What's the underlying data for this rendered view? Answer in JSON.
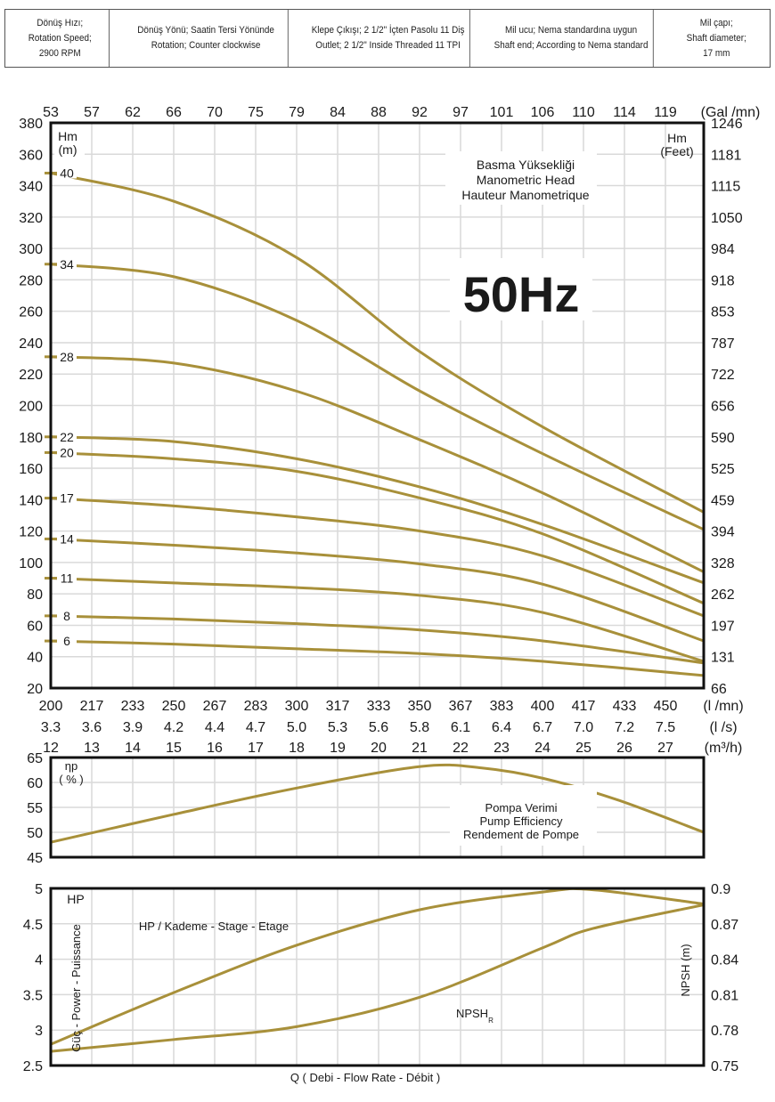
{
  "specs": [
    "Dönüş Hızı;\nRotation Speed;\n2900 RPM",
    "Dönüş Yönü; Saatin Tersi Yönünde\nRotation; Counter clockwise",
    "Klepe Çıkışı; 2 1/2\" İçten Pasolu 11 Diş\nOutlet; 2 1/2\" Inside Threaded 11 TPI",
    "Mil ucu; Nema standardına uygun\nShaft end; According to Nema standard",
    "Mil çapı;\nShaft diameter;\n17 mm"
  ],
  "colors": {
    "curve": "#a8903a",
    "grid": "#d9d9d9",
    "frame": "#111111"
  },
  "chart_data": [
    {
      "type": "line",
      "title": "50Hz",
      "annotation": [
        "Basma Yüksekliği",
        "Manometric Head",
        "Hauteur Manometrique"
      ],
      "ylabel_left": [
        "Hm",
        "(m)"
      ],
      "ylabel_right": [
        "Hm",
        "(Feet)"
      ],
      "x_unit": "l/mn",
      "xlim": [
        200,
        465
      ],
      "ylim": [
        20,
        380
      ],
      "grid": true,
      "y_ticks": [
        20,
        40,
        60,
        80,
        100,
        120,
        140,
        160,
        180,
        200,
        220,
        240,
        260,
        280,
        300,
        320,
        340,
        360,
        380
      ],
      "y_right_ticks": [
        "66",
        "131",
        "197",
        "262",
        "328",
        "394",
        "459",
        "525",
        "590",
        "656",
        "722",
        "787",
        "853",
        "918",
        "984",
        "1050",
        "1115",
        "1181",
        "1246"
      ],
      "x_top_ticks": {
        "labels": [
          "53",
          "57",
          "62",
          "66",
          "70",
          "75",
          "79",
          "84",
          "88",
          "92",
          "97",
          "101",
          "106",
          "110",
          "114",
          "119"
        ],
        "unit": "(Gal /mn)"
      },
      "x_ticks_lmn": {
        "labels": [
          "200",
          "217",
          "233",
          "250",
          "267",
          "283",
          "300",
          "317",
          "333",
          "350",
          "367",
          "383",
          "400",
          "417",
          "433",
          "450"
        ],
        "unit": "(l /mn)"
      },
      "x_ticks_ls": {
        "labels": [
          "3.3",
          "3.6",
          "3.9",
          "4.2",
          "4.4",
          "4.7",
          "5.0",
          "5.3",
          "5.6",
          "5.8",
          "6.1",
          "6.4",
          "6.7",
          "7.0",
          "7.2",
          "7.5"
        ],
        "unit": "(l /s)"
      },
      "x_ticks_m3h": {
        "labels": [
          "12",
          "13",
          "14",
          "15",
          "16",
          "17",
          "18",
          "19",
          "20",
          "21",
          "22",
          "23",
          "24",
          "25",
          "26",
          "27"
        ],
        "unit": "(m³/h)"
      },
      "x": [
        200,
        250,
        300,
        350,
        400,
        465
      ],
      "series": [
        {
          "name": "40",
          "values": [
            348,
            330,
            294,
            234,
            186,
            132
          ]
        },
        {
          "name": "34",
          "values": [
            290,
            282,
            254,
            209,
            169,
            121
          ]
        },
        {
          "name": "28",
          "values": [
            231,
            227,
            209,
            178,
            144,
            94
          ]
        },
        {
          "name": "22",
          "values": [
            180,
            177,
            166,
            148,
            124,
            87
          ]
        },
        {
          "name": "20",
          "values": [
            170,
            166,
            158,
            141,
            118,
            74
          ]
        },
        {
          "name": "17",
          "values": [
            141,
            136,
            129,
            120,
            104,
            66
          ]
        },
        {
          "name": "14",
          "values": [
            115,
            111,
            106,
            99,
            86,
            50
          ]
        },
        {
          "name": "11",
          "values": [
            90,
            87,
            84,
            79,
            68,
            37
          ]
        },
        {
          "name": "8",
          "values": [
            66,
            64,
            61,
            57,
            50,
            36
          ]
        },
        {
          "name": "6",
          "values": [
            50,
            48,
            45,
            42,
            37,
            28
          ]
        }
      ]
    },
    {
      "type": "line",
      "ylabel": [
        "ηp",
        "( % )"
      ],
      "annotation": [
        "Pompa Verimi",
        "Pump Efficiency",
        "Rendement de Pompe"
      ],
      "xlim": [
        200,
        465
      ],
      "ylim": [
        45,
        65
      ],
      "y_ticks": [
        45,
        50,
        55,
        60,
        65
      ],
      "x": [
        200,
        250,
        300,
        350,
        375,
        400,
        430,
        465
      ],
      "series": [
        {
          "name": "Pump Efficiency",
          "values": [
            48,
            53.6,
            58.9,
            63.2,
            62.9,
            60.8,
            56.5,
            50
          ]
        }
      ]
    },
    {
      "type": "line",
      "ylabel_left": "Güç - Power - Puissance",
      "ylabel_left_unit": "HP",
      "ylabel_right": "NPSH (m)",
      "xlabel": "Q    ( Debi - Flow Rate - Débit )",
      "xlim": [
        200,
        465
      ],
      "ylim": [
        2.5,
        5
      ],
      "ylim_right": [
        0.75,
        0.9
      ],
      "y_ticks": [
        "2.5",
        "3",
        "3.5",
        "4",
        "4.5",
        "5"
      ],
      "y_right_ticks": [
        "0.75",
        "0.78",
        "0.81",
        "0.84",
        "0.87",
        "0.9"
      ],
      "x": [
        200,
        250,
        300,
        350,
        400,
        420,
        465
      ],
      "series": [
        {
          "name": "HP / Kademe - Stage - Etage",
          "axis": "left",
          "values": [
            2.8,
            3.53,
            4.2,
            4.7,
            4.95,
            4.98,
            4.78
          ]
        },
        {
          "name": "NPSH",
          "sub": "R",
          "axis": "right",
          "values": [
            0.762,
            0.772,
            0.783,
            0.808,
            0.85,
            0.866,
            0.886
          ]
        }
      ]
    }
  ]
}
